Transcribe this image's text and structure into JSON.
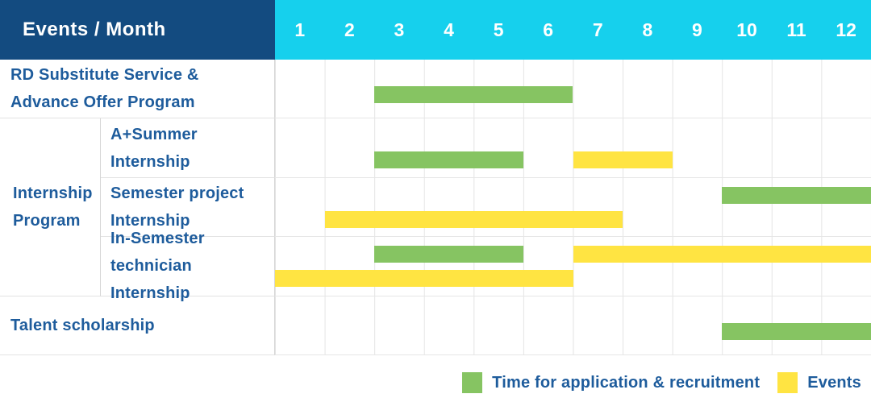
{
  "colors": {
    "application": "#86C462",
    "event": "#FFE442",
    "header_bg": "#134B80",
    "months_bg": "#16D0ED",
    "label_text": "#1E5C9C"
  },
  "chart_data": {
    "type": "gantt",
    "title": "Events / Month",
    "x": {
      "unit": "month",
      "ticks": [
        "1",
        "2",
        "3",
        "4",
        "5",
        "6",
        "7",
        "8",
        "9",
        "10",
        "11",
        "12"
      ],
      "range": [
        1,
        13
      ]
    },
    "rows": [
      {
        "id": "rd-substitute",
        "label": "RD Substitute Service &\nAdvance Offer Program",
        "group": null,
        "bars": [
          {
            "type": "application",
            "start": 3,
            "end": 7,
            "line": "mid"
          }
        ]
      },
      {
        "id": "aplus-summer",
        "label": "A+Summer\nInternship",
        "group": "Internship Program",
        "bars": [
          {
            "type": "application",
            "start": 3,
            "end": 6,
            "line": "low"
          },
          {
            "type": "event",
            "start": 7,
            "end": 9,
            "line": "low"
          }
        ]
      },
      {
        "id": "semester-project",
        "label": "Semester project\nInternship",
        "group": "Internship Program",
        "bars": [
          {
            "type": "application",
            "start": 10,
            "end": 13,
            "line": "high"
          },
          {
            "type": "event",
            "start": 2,
            "end": 8,
            "line": "low"
          }
        ]
      },
      {
        "id": "in-semester-technician",
        "label": "In-Semester\ntechnician Internship",
        "group": "Internship Program",
        "bars": [
          {
            "type": "application",
            "start": 3,
            "end": 6,
            "line": "high"
          },
          {
            "type": "event",
            "start": 7,
            "end": 13,
            "line": "high"
          },
          {
            "type": "event",
            "start": 1,
            "end": 7,
            "line": "low"
          }
        ]
      },
      {
        "id": "talent-scholarship",
        "label": "Talent scholarship",
        "group": null,
        "bars": [
          {
            "type": "application",
            "start": 10,
            "end": 13,
            "line": "mid"
          }
        ]
      }
    ],
    "group_label": "Internship\nProgram",
    "legend": [
      {
        "type": "application",
        "label": "Time for application & recruitment"
      },
      {
        "type": "event",
        "label": "Events"
      }
    ],
    "legend_position": "bottom-right",
    "grid": true
  }
}
